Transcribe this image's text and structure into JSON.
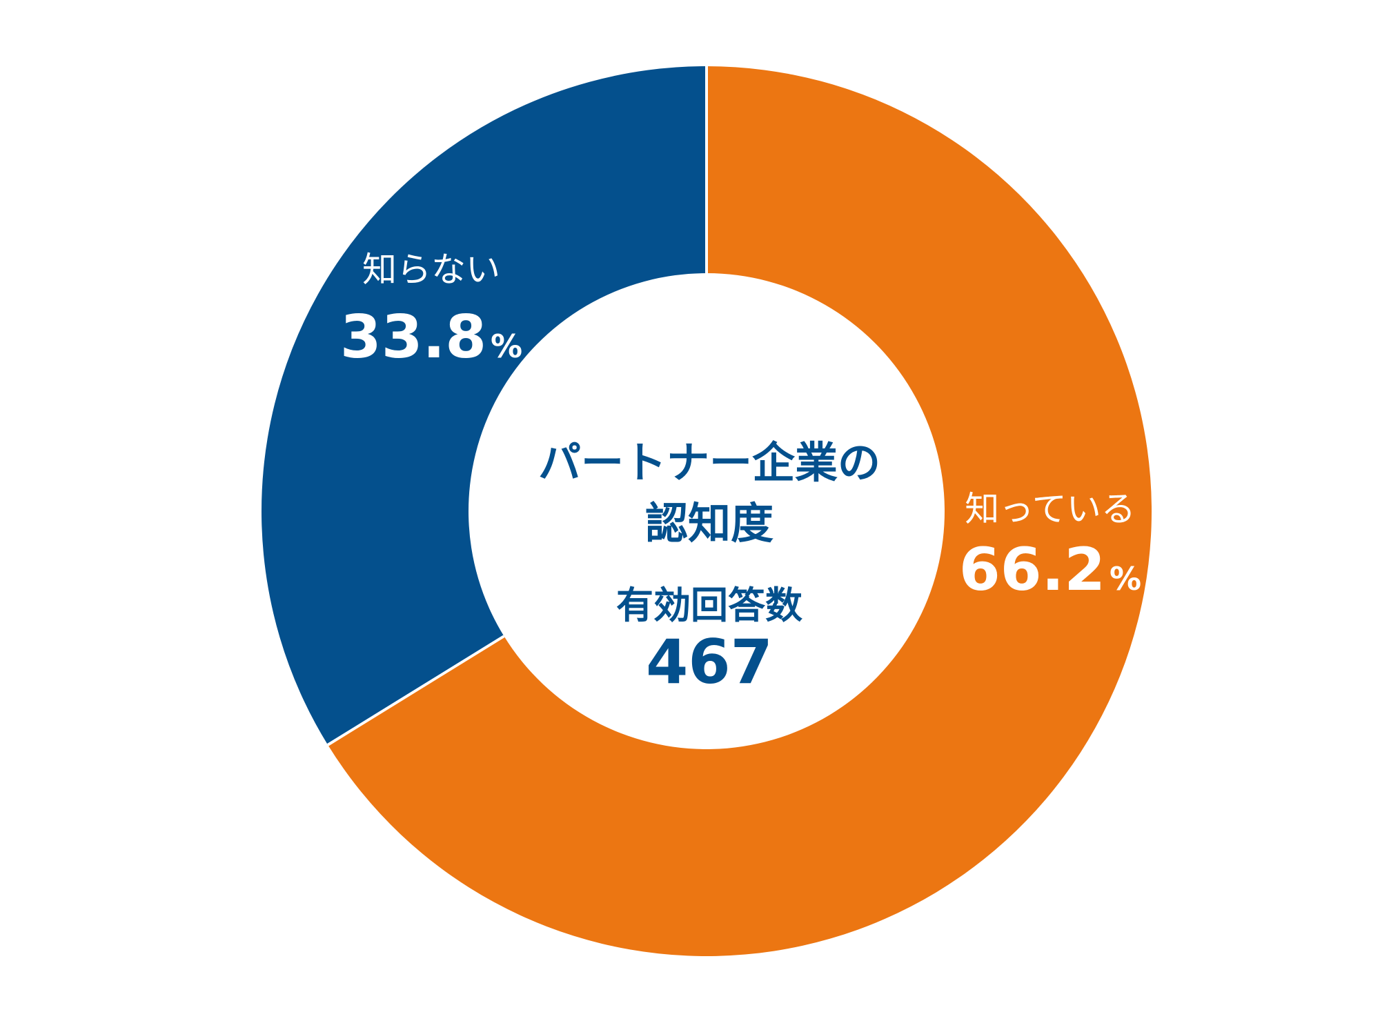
{
  "chart_data": {
    "type": "pie",
    "variant": "donut",
    "title_lines": [
      "パートナー企業の",
      "認知度"
    ],
    "subtitle": "有効回答数",
    "total": "467",
    "unit": "%",
    "slices": [
      {
        "name": "知っている",
        "value": 66.2,
        "label": "66.2",
        "color": "#ec7612",
        "text_color": "#ffffff"
      },
      {
        "name": "知らない",
        "value": 33.8,
        "label": "33.8",
        "color": "#04508d",
        "text_color": "#ffffff"
      }
    ],
    "start_angle": "12 o'clock",
    "direction": "clockwise",
    "center_text_color": "#04508d",
    "separator_color": "#ffffff"
  }
}
